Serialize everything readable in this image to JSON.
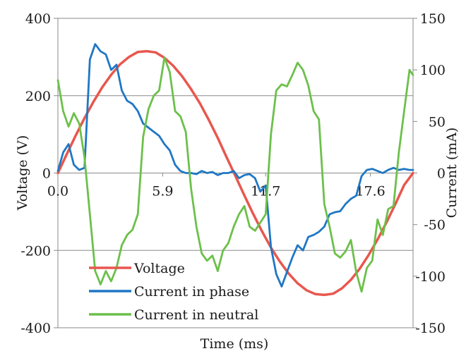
{
  "chart_data": {
    "type": "line",
    "xlabel": "Time (ms)",
    "ylabel_left": "Voltage (V)",
    "ylabel_right": "Current (mA)",
    "x_ticks": [
      "0.0",
      "5.9",
      "11.7",
      "17.6"
    ],
    "x_tick_values": [
      0.0,
      5.9,
      11.7,
      17.6
    ],
    "xlim": [
      0,
      20.0
    ],
    "ylim_left": [
      -400,
      400
    ],
    "ylim_right": [
      -150,
      150
    ],
    "left_ticks": [
      -400,
      -200,
      0,
      200,
      400
    ],
    "right_ticks": [
      -150,
      -100,
      -50,
      0,
      50,
      100,
      150
    ],
    "grid": "horizontal",
    "legend_position": "bottom-left",
    "series": [
      {
        "name": "Voltage",
        "axis": "left",
        "color": "#e8574e",
        "x": [
          0,
          0.5,
          1,
          1.5,
          2,
          2.5,
          3,
          3.5,
          4,
          4.5,
          5,
          5.5,
          6,
          6.5,
          7,
          7.5,
          8,
          8.5,
          9,
          9.5,
          10,
          10.5,
          11,
          11.5,
          12,
          12.5,
          13,
          13.5,
          14,
          14.5,
          15,
          15.5,
          16,
          16.5,
          17,
          17.5,
          18,
          18.5,
          19,
          19.5,
          20
        ],
        "y": [
          0,
          49,
          97,
          142,
          184,
          222,
          254,
          281,
          300,
          313,
          315,
          312,
          298,
          277,
          250,
          217,
          180,
          137,
          91,
          41,
          -8,
          -58,
          -106,
          -151,
          -193,
          -229,
          -260,
          -285,
          -303,
          -313,
          -315,
          -312,
          -298,
          -276,
          -247,
          -212,
          -172,
          -128,
          -81,
          -31,
          0
        ]
      },
      {
        "name": "Current in phase",
        "axis": "right",
        "color": "#1f77c4",
        "x": [
          0,
          0.3,
          0.6,
          0.9,
          1.2,
          1.5,
          1.8,
          2.1,
          2.4,
          2.7,
          3.0,
          3.3,
          3.6,
          3.9,
          4.2,
          4.5,
          4.8,
          5.1,
          5.4,
          5.7,
          6.0,
          6.3,
          6.6,
          6.9,
          7.2,
          7.5,
          7.8,
          8.1,
          8.4,
          8.7,
          9.0,
          9.3,
          9.6,
          9.9,
          10.2,
          10.5,
          10.8,
          11.1,
          11.4,
          11.7,
          12.0,
          12.3,
          12.6,
          12.9,
          13.2,
          13.5,
          13.8,
          14.1,
          14.4,
          14.7,
          15.0,
          15.3,
          15.6,
          15.9,
          16.2,
          16.5,
          16.8,
          17.1,
          17.4,
          17.7,
          18.0,
          18.3,
          18.6,
          18.9,
          19.2,
          19.5,
          19.8,
          20.0
        ],
        "y": [
          2,
          20,
          28,
          8,
          3,
          5,
          110,
          125,
          118,
          115,
          100,
          105,
          80,
          70,
          67,
          60,
          48,
          44,
          40,
          36,
          28,
          22,
          8,
          2,
          0,
          0,
          -1,
          2,
          0,
          1,
          -2,
          0,
          0,
          2,
          -5,
          -2,
          -1,
          -5,
          -18,
          -12,
          -72,
          -98,
          -110,
          -96,
          -82,
          -70,
          -75,
          -62,
          -60,
          -57,
          -52,
          -40,
          -38,
          -37,
          -30,
          -25,
          -22,
          -3,
          3,
          4,
          2,
          0,
          3,
          5,
          3,
          4,
          3,
          3
        ]
      },
      {
        "name": "Current in neutral",
        "axis": "right",
        "color": "#6cc04a",
        "x": [
          0,
          0.3,
          0.6,
          0.9,
          1.2,
          1.5,
          1.8,
          2.1,
          2.4,
          2.7,
          3.0,
          3.3,
          3.6,
          3.9,
          4.2,
          4.5,
          4.8,
          5.1,
          5.4,
          5.7,
          6.0,
          6.3,
          6.6,
          6.9,
          7.2,
          7.5,
          7.8,
          8.1,
          8.4,
          8.7,
          9.0,
          9.3,
          9.6,
          9.9,
          10.2,
          10.5,
          10.8,
          11.1,
          11.4,
          11.7,
          12.0,
          12.3,
          12.6,
          12.9,
          13.2,
          13.5,
          13.8,
          14.1,
          14.4,
          14.7,
          15.0,
          15.3,
          15.6,
          15.9,
          16.2,
          16.5,
          16.8,
          17.1,
          17.4,
          17.7,
          18.0,
          18.3,
          18.6,
          18.9,
          19.2,
          19.5,
          19.8,
          20.0
        ],
        "y": [
          90,
          60,
          45,
          58,
          48,
          15,
          -40,
          -95,
          -108,
          -95,
          -105,
          -92,
          -70,
          -60,
          -55,
          -40,
          35,
          62,
          75,
          80,
          112,
          98,
          60,
          55,
          40,
          -15,
          -52,
          -78,
          -85,
          -80,
          -95,
          -75,
          -68,
          -52,
          -40,
          -32,
          -52,
          -56,
          -48,
          -40,
          38,
          80,
          86,
          84,
          95,
          107,
          100,
          85,
          60,
          52,
          -30,
          -52,
          -78,
          -82,
          -76,
          -65,
          -96,
          -115,
          -92,
          -85,
          -45,
          -60,
          -35,
          -32,
          20,
          60,
          100,
          95
        ]
      }
    ]
  }
}
